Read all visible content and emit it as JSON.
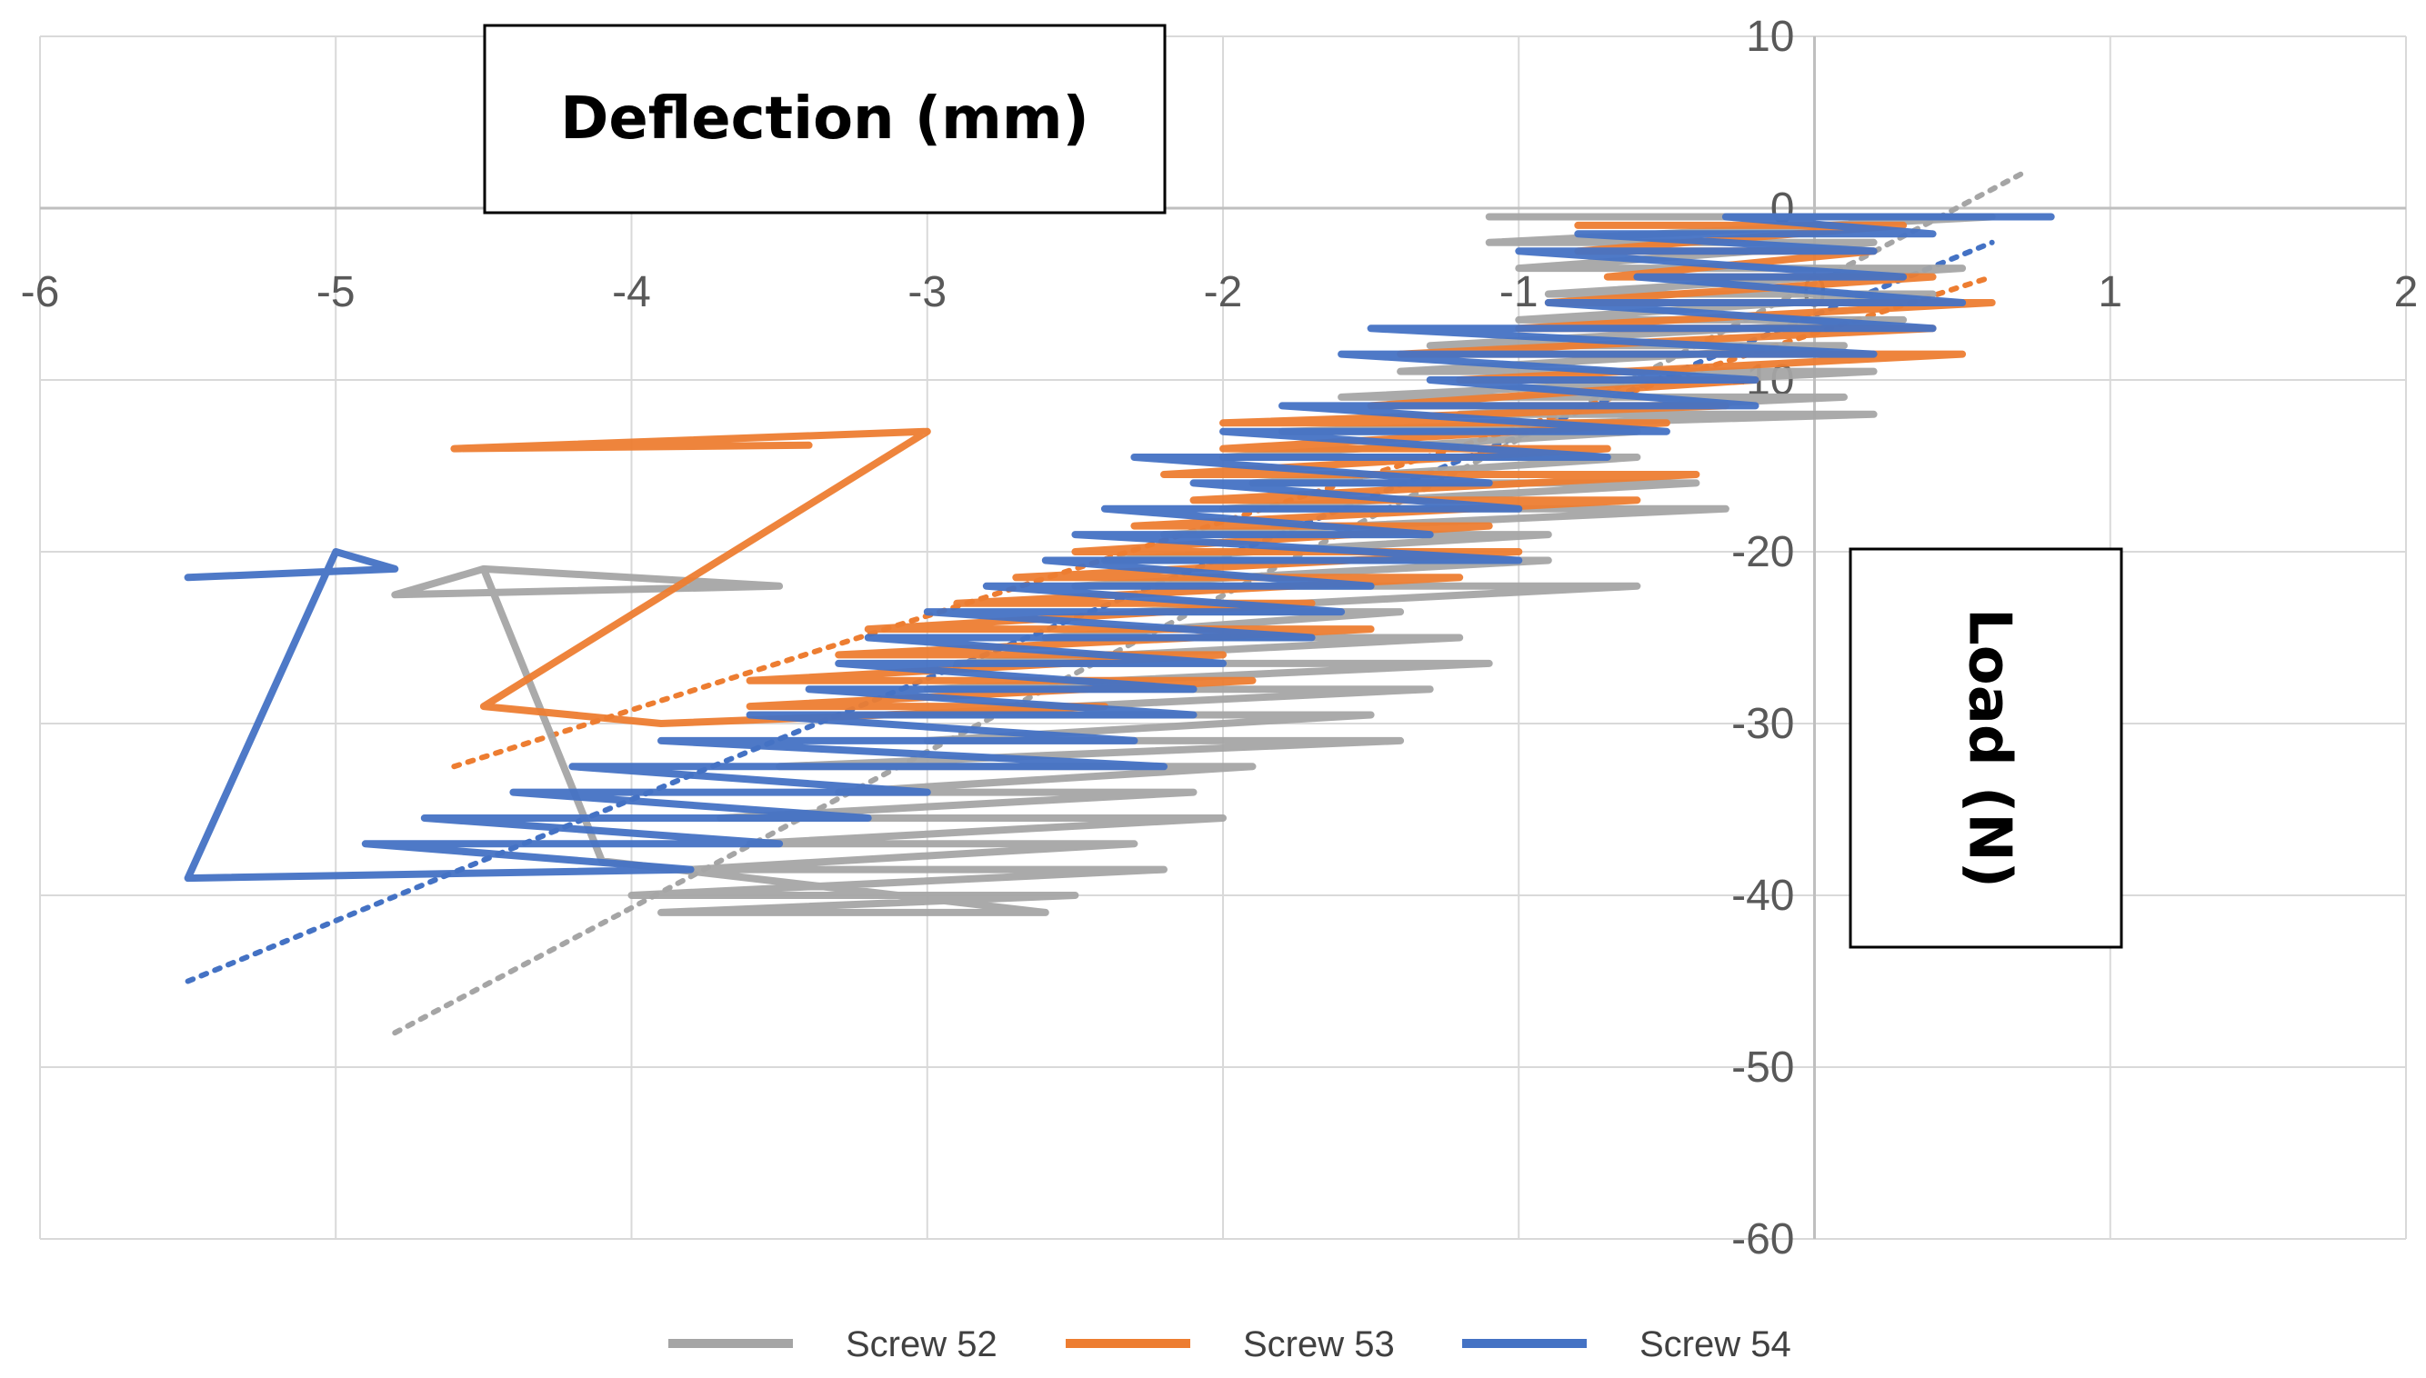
{
  "chart_data": {
    "type": "line",
    "title": "",
    "xlabel": "Deflection (mm)",
    "ylabel": "Load (N)",
    "xlim": [
      -6,
      2
    ],
    "ylim": [
      -60,
      10
    ],
    "x_ticks": [
      "-6",
      "-5",
      "-4",
      "-3",
      "-2",
      "-1",
      "0",
      "1",
      "2"
    ],
    "y_ticks": [
      "10",
      "0",
      "-10",
      "-20",
      "-30",
      "-40",
      "-50",
      "-60"
    ],
    "grid": true,
    "legend_position": "bottom",
    "series": [
      {
        "name": "Screw 52",
        "color": "#a5a5a5",
        "points": [
          [
            -1.1,
            -0.5
          ],
          [
            0.6,
            -0.5
          ],
          [
            -1.1,
            -2
          ],
          [
            0.2,
            -2
          ],
          [
            -1.0,
            -3.5
          ],
          [
            0.5,
            -3.5
          ],
          [
            -0.9,
            -5
          ],
          [
            0.4,
            -5
          ],
          [
            -1.0,
            -6.5
          ],
          [
            0.3,
            -6.5
          ],
          [
            -1.3,
            -8
          ],
          [
            0.1,
            -8
          ],
          [
            -1.4,
            -9.5
          ],
          [
            0.2,
            -9.5
          ],
          [
            -1.6,
            -11
          ],
          [
            0.1,
            -11
          ],
          [
            -1.2,
            -12
          ],
          [
            0.2,
            -12
          ],
          [
            -1.8,
            -13
          ],
          [
            -0.6,
            -13
          ],
          [
            -2.0,
            -14.5
          ],
          [
            -0.6,
            -14.5
          ],
          [
            -1.9,
            -16
          ],
          [
            -0.4,
            -16
          ],
          [
            -2.0,
            -17.5
          ],
          [
            -0.3,
            -17.5
          ],
          [
            -2.2,
            -19
          ],
          [
            -0.9,
            -19
          ],
          [
            -2.4,
            -20.5
          ],
          [
            -0.9,
            -20.5
          ],
          [
            -2.5,
            -22
          ],
          [
            -0.6,
            -22
          ],
          [
            -2.3,
            -23.5
          ],
          [
            -1.4,
            -23.5
          ],
          [
            -2.6,
            -25
          ],
          [
            -1.2,
            -25
          ],
          [
            -2.9,
            -26.5
          ],
          [
            -1.1,
            -26.5
          ],
          [
            -3.0,
            -28
          ],
          [
            -1.3,
            -28
          ],
          [
            -3.1,
            -29.5
          ],
          [
            -1.5,
            -29.5
          ],
          [
            -3.0,
            -31
          ],
          [
            -1.4,
            -31
          ],
          [
            -3.5,
            -32.5
          ],
          [
            -1.9,
            -32.5
          ],
          [
            -3.3,
            -34
          ],
          [
            -2.1,
            -34
          ],
          [
            -3.7,
            -35.5
          ],
          [
            -2.0,
            -35.5
          ],
          [
            -3.6,
            -37
          ],
          [
            -2.3,
            -37
          ],
          [
            -3.8,
            -38.5
          ],
          [
            -2.2,
            -38.5
          ],
          [
            -4.0,
            -40
          ],
          [
            -2.5,
            -40
          ],
          [
            -3.9,
            -41
          ],
          [
            -2.6,
            -41
          ],
          [
            -4.1,
            -38
          ],
          [
            -4.5,
            -21
          ],
          [
            -4.8,
            -22.5
          ],
          [
            -3.5,
            -22
          ],
          [
            -4.5,
            -21
          ]
        ],
        "trendline": [
          [
            -4.8,
            -48
          ],
          [
            0.7,
            2
          ]
        ]
      },
      {
        "name": "Screw 53",
        "color": "#ed7d31",
        "points": [
          [
            -0.8,
            -1
          ],
          [
            0.3,
            -1
          ],
          [
            -0.8,
            -2.5
          ],
          [
            0.2,
            -2.5
          ],
          [
            -0.7,
            -4
          ],
          [
            0.4,
            -4
          ],
          [
            -0.9,
            -5.5
          ],
          [
            0.6,
            -5.5
          ],
          [
            -1.0,
            -7
          ],
          [
            0.4,
            -7
          ],
          [
            -1.4,
            -8.5
          ],
          [
            0.5,
            -8.5
          ],
          [
            -1.2,
            -10
          ],
          [
            -0.2,
            -10
          ],
          [
            -1.5,
            -11.5
          ],
          [
            -0.3,
            -11.5
          ],
          [
            -2.0,
            -12.5
          ],
          [
            -0.5,
            -12.5
          ],
          [
            -2.0,
            -14
          ],
          [
            -0.7,
            -14
          ],
          [
            -2.2,
            -15.5
          ],
          [
            -0.4,
            -15.5
          ],
          [
            -2.1,
            -17
          ],
          [
            -0.6,
            -17
          ],
          [
            -2.3,
            -18.5
          ],
          [
            -1.1,
            -18.5
          ],
          [
            -2.5,
            -20
          ],
          [
            -1.0,
            -20
          ],
          [
            -2.7,
            -21.5
          ],
          [
            -1.2,
            -21.5
          ],
          [
            -2.9,
            -23
          ],
          [
            -1.7,
            -23
          ],
          [
            -3.2,
            -24.5
          ],
          [
            -1.5,
            -24.5
          ],
          [
            -3.3,
            -26
          ],
          [
            -2.0,
            -26
          ],
          [
            -3.6,
            -27.5
          ],
          [
            -1.9,
            -27.5
          ],
          [
            -3.6,
            -29
          ],
          [
            -2.4,
            -29
          ],
          [
            -3.9,
            -30
          ],
          [
            -4.5,
            -29
          ],
          [
            -3.0,
            -13
          ],
          [
            -4.6,
            -14
          ],
          [
            -3.4,
            -13.8
          ]
        ],
        "trendline": [
          [
            -4.6,
            -32.5
          ],
          [
            0.6,
            -4
          ]
        ]
      },
      {
        "name": "Screw 54",
        "color": "#4472c4",
        "points": [
          [
            0.8,
            -0.5
          ],
          [
            -0.3,
            -0.5
          ],
          [
            0.4,
            -1.5
          ],
          [
            -0.8,
            -1.5
          ],
          [
            0.2,
            -2.5
          ],
          [
            -1.0,
            -2.5
          ],
          [
            0.3,
            -4
          ],
          [
            -0.6,
            -4
          ],
          [
            0.5,
            -5.5
          ],
          [
            -0.9,
            -5.5
          ],
          [
            0.4,
            -7
          ],
          [
            -1.5,
            -7
          ],
          [
            0.2,
            -8.5
          ],
          [
            -1.6,
            -8.5
          ],
          [
            -0.2,
            -10
          ],
          [
            -1.3,
            -10
          ],
          [
            -0.2,
            -11.5
          ],
          [
            -1.8,
            -11.5
          ],
          [
            -0.5,
            -13
          ],
          [
            -2.0,
            -13
          ],
          [
            -0.7,
            -14.5
          ],
          [
            -2.3,
            -14.5
          ],
          [
            -1.1,
            -16
          ],
          [
            -2.1,
            -16
          ],
          [
            -1.0,
            -17.5
          ],
          [
            -2.4,
            -17.5
          ],
          [
            -1.3,
            -19
          ],
          [
            -2.5,
            -19
          ],
          [
            -1.0,
            -20.5
          ],
          [
            -2.6,
            -20.5
          ],
          [
            -1.5,
            -22
          ],
          [
            -2.8,
            -22
          ],
          [
            -1.6,
            -23.5
          ],
          [
            -3.0,
            -23.5
          ],
          [
            -1.7,
            -25
          ],
          [
            -3.2,
            -25
          ],
          [
            -2.0,
            -26.5
          ],
          [
            -3.3,
            -26.5
          ],
          [
            -2.1,
            -28
          ],
          [
            -3.4,
            -28
          ],
          [
            -2.1,
            -29.5
          ],
          [
            -3.6,
            -29.5
          ],
          [
            -2.3,
            -31
          ],
          [
            -3.9,
            -31
          ],
          [
            -2.2,
            -32.5
          ],
          [
            -4.2,
            -32.5
          ],
          [
            -3.0,
            -34
          ],
          [
            -4.4,
            -34
          ],
          [
            -3.2,
            -35.5
          ],
          [
            -4.7,
            -35.5
          ],
          [
            -3.5,
            -37
          ],
          [
            -4.9,
            -37
          ],
          [
            -3.8,
            -38.5
          ],
          [
            -5.5,
            -39
          ],
          [
            -5.0,
            -20
          ],
          [
            -4.8,
            -21
          ],
          [
            -5.5,
            -21.5
          ]
        ],
        "trendline": [
          [
            -5.5,
            -45
          ],
          [
            0.6,
            -2
          ]
        ]
      }
    ]
  }
}
